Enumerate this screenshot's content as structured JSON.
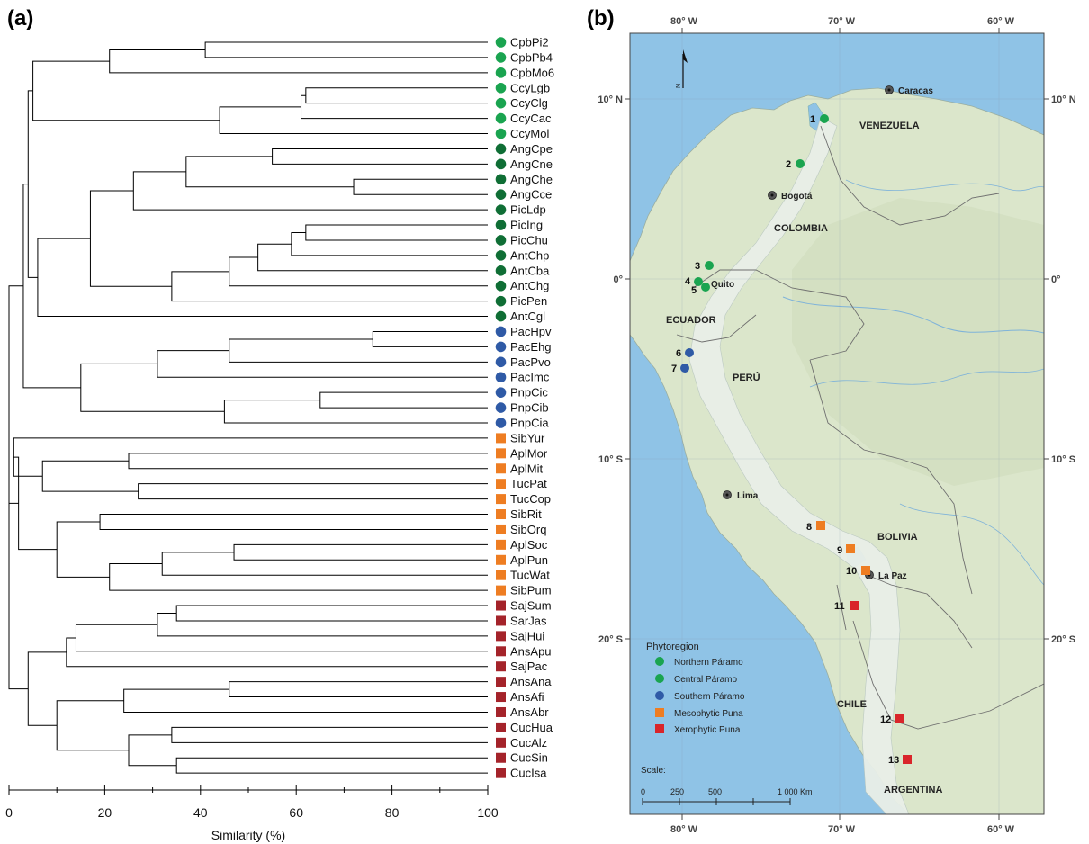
{
  "panels": {
    "a": "(a)",
    "b": "(b)"
  },
  "dendrogram": {
    "xlabel": "Similarity (%)",
    "ticks": [
      "0",
      "20",
      "40",
      "60",
      "80",
      "100"
    ],
    "tick_values": [
      0,
      20,
      40,
      60,
      80,
      100
    ],
    "leaves": [
      {
        "name": "CpbPi2",
        "group": "northern"
      },
      {
        "name": "CpbPb4",
        "group": "northern"
      },
      {
        "name": "CpbMo6",
        "group": "northern"
      },
      {
        "name": "CcyLgb",
        "group": "northern"
      },
      {
        "name": "CcyClg",
        "group": "northern"
      },
      {
        "name": "CcyCac",
        "group": "northern"
      },
      {
        "name": "CcyMol",
        "group": "northern"
      },
      {
        "name": "AngCpe",
        "group": "central"
      },
      {
        "name": "AngCne",
        "group": "central"
      },
      {
        "name": "AngChe",
        "group": "central"
      },
      {
        "name": "AngCce",
        "group": "central"
      },
      {
        "name": "PicLdp",
        "group": "central"
      },
      {
        "name": "PicIng",
        "group": "central"
      },
      {
        "name": "PicChu",
        "group": "central"
      },
      {
        "name": "AntChp",
        "group": "central"
      },
      {
        "name": "AntCba",
        "group": "central"
      },
      {
        "name": "AntChg",
        "group": "central"
      },
      {
        "name": "PicPen",
        "group": "central"
      },
      {
        "name": "AntCgl",
        "group": "central"
      },
      {
        "name": "PacHpv",
        "group": "southern"
      },
      {
        "name": "PacEhg",
        "group": "southern"
      },
      {
        "name": "PacPvo",
        "group": "southern"
      },
      {
        "name": "PacImc",
        "group": "southern"
      },
      {
        "name": "PnpCic",
        "group": "southern"
      },
      {
        "name": "PnpCib",
        "group": "southern"
      },
      {
        "name": "PnpCia",
        "group": "southern"
      },
      {
        "name": "SibYur",
        "group": "meso"
      },
      {
        "name": "AplMor",
        "group": "meso"
      },
      {
        "name": "AplMit",
        "group": "meso"
      },
      {
        "name": "TucPat",
        "group": "meso"
      },
      {
        "name": "TucCop",
        "group": "meso"
      },
      {
        "name": "SibRit",
        "group": "meso"
      },
      {
        "name": "SibOrq",
        "group": "meso"
      },
      {
        "name": "AplSoc",
        "group": "meso"
      },
      {
        "name": "AplPun",
        "group": "meso"
      },
      {
        "name": "TucWat",
        "group": "meso"
      },
      {
        "name": "SibPum",
        "group": "meso"
      },
      {
        "name": "SajSum",
        "group": "xero"
      },
      {
        "name": "SarJas",
        "group": "xero"
      },
      {
        "name": "SajHui",
        "group": "xero"
      },
      {
        "name": "AnsApu",
        "group": "xero"
      },
      {
        "name": "SajPac",
        "group": "xero"
      },
      {
        "name": "AnsAna",
        "group": "xero"
      },
      {
        "name": "AnsAfi",
        "group": "xero"
      },
      {
        "name": "AnsAbr",
        "group": "xero"
      },
      {
        "name": "CucHua",
        "group": "xero"
      },
      {
        "name": "CucAlz",
        "group": "xero"
      },
      {
        "name": "CucSin",
        "group": "xero"
      },
      {
        "name": "CucIsa",
        "group": "xero"
      }
    ],
    "merges": [
      [
        0,
        1,
        41
      ],
      [
        -1,
        2,
        21
      ],
      [
        3,
        4,
        62
      ],
      [
        -3,
        5,
        61
      ],
      [
        -4,
        6,
        44
      ],
      [
        -2,
        -5,
        5
      ],
      [
        7,
        8,
        55
      ],
      [
        9,
        10,
        72
      ],
      [
        -7,
        -8,
        37
      ],
      [
        -9,
        11,
        26
      ],
      [
        12,
        13,
        62
      ],
      [
        -11,
        14,
        59
      ],
      [
        -12,
        15,
        52
      ],
      [
        -13,
        16,
        46
      ],
      [
        -14,
        17,
        34
      ],
      [
        -10,
        -15,
        17
      ],
      [
        -16,
        18,
        6
      ],
      [
        -6,
        -17,
        4
      ],
      [
        19,
        20,
        76
      ],
      [
        -19,
        21,
        46
      ],
      [
        -20,
        22,
        31
      ],
      [
        23,
        24,
        65
      ],
      [
        -22,
        25,
        45
      ],
      [
        -21,
        -23,
        15
      ],
      [
        -18,
        -24,
        3
      ],
      [
        27,
        28,
        25
      ],
      [
        29,
        30,
        27
      ],
      [
        -26,
        -27,
        7
      ],
      [
        26,
        -28,
        1
      ],
      [
        31,
        32,
        19
      ],
      [
        33,
        34,
        47
      ],
      [
        -31,
        35,
        32
      ],
      [
        -32,
        36,
        21
      ],
      [
        -30,
        -33,
        10
      ],
      [
        -29,
        -34,
        2
      ],
      [
        -25,
        -35,
        0
      ],
      [
        37,
        38,
        35
      ],
      [
        -37,
        39,
        31
      ],
      [
        -38,
        40,
        14
      ],
      [
        -39,
        41,
        12
      ],
      [
        42,
        43,
        46
      ],
      [
        -41,
        44,
        24
      ],
      [
        45,
        46,
        34
      ],
      [
        47,
        48,
        35
      ],
      [
        -43,
        -44,
        25
      ],
      [
        -42,
        -45,
        10
      ],
      [
        -40,
        -46,
        4
      ],
      [
        -36,
        -47,
        0
      ]
    ]
  },
  "map": {
    "top_axis": [
      "80° W",
      "70° W",
      "60° W"
    ],
    "bottom_axis": [
      "80° W",
      "70° W",
      "60° W"
    ],
    "left_axis": [
      "10° N",
      "0°",
      "10° S",
      "20° S"
    ],
    "right_axis": [
      "10° N",
      "0°",
      "10° S",
      "20° S"
    ],
    "north_arrow": "N",
    "countries": [
      "VENEZUELA",
      "COLOMBIA",
      "ECUADOR",
      "PERÚ",
      "BOLIVIA",
      "CHILE",
      "ARGENTINA"
    ],
    "cities": [
      "Caracas",
      "Bogotá",
      "Quito",
      "Lima",
      "La Paz"
    ],
    "sites": [
      {
        "n": "1",
        "group": "northern"
      },
      {
        "n": "2",
        "group": "northern"
      },
      {
        "n": "3",
        "group": "central"
      },
      {
        "n": "4",
        "group": "central"
      },
      {
        "n": "5",
        "group": "central"
      },
      {
        "n": "6",
        "group": "southern"
      },
      {
        "n": "7",
        "group": "southern"
      },
      {
        "n": "8",
        "group": "meso"
      },
      {
        "n": "9",
        "group": "meso"
      },
      {
        "n": "10",
        "group": "meso"
      },
      {
        "n": "11",
        "group": "xero"
      },
      {
        "n": "12",
        "group": "xero"
      },
      {
        "n": "13",
        "group": "xero"
      }
    ],
    "legend": {
      "title": "Phytoregion",
      "items": [
        {
          "label": "Northern Páramo",
          "group": "northern",
          "shape": "circle"
        },
        {
          "label": "Central Páramo",
          "group": "central",
          "shape": "circle"
        },
        {
          "label": "Southern Páramo",
          "group": "southern",
          "shape": "circle"
        },
        {
          "label": "Mesophytic Puna",
          "group": "meso",
          "shape": "square"
        },
        {
          "label": "Xerophytic Puna",
          "group": "xero",
          "shape": "square"
        }
      ]
    },
    "scale": {
      "title": "Scale:",
      "labels": [
        "0",
        "250",
        "500",
        "1 000 Km"
      ]
    }
  },
  "colors": {
    "northern": "#1aa450",
    "central": "#0f6e35",
    "southern": "#2f5aa6",
    "meso": "#ee7d22",
    "xero": "#a4232a",
    "ocean": "#8fc3e6",
    "land": "#dde6cc"
  }
}
